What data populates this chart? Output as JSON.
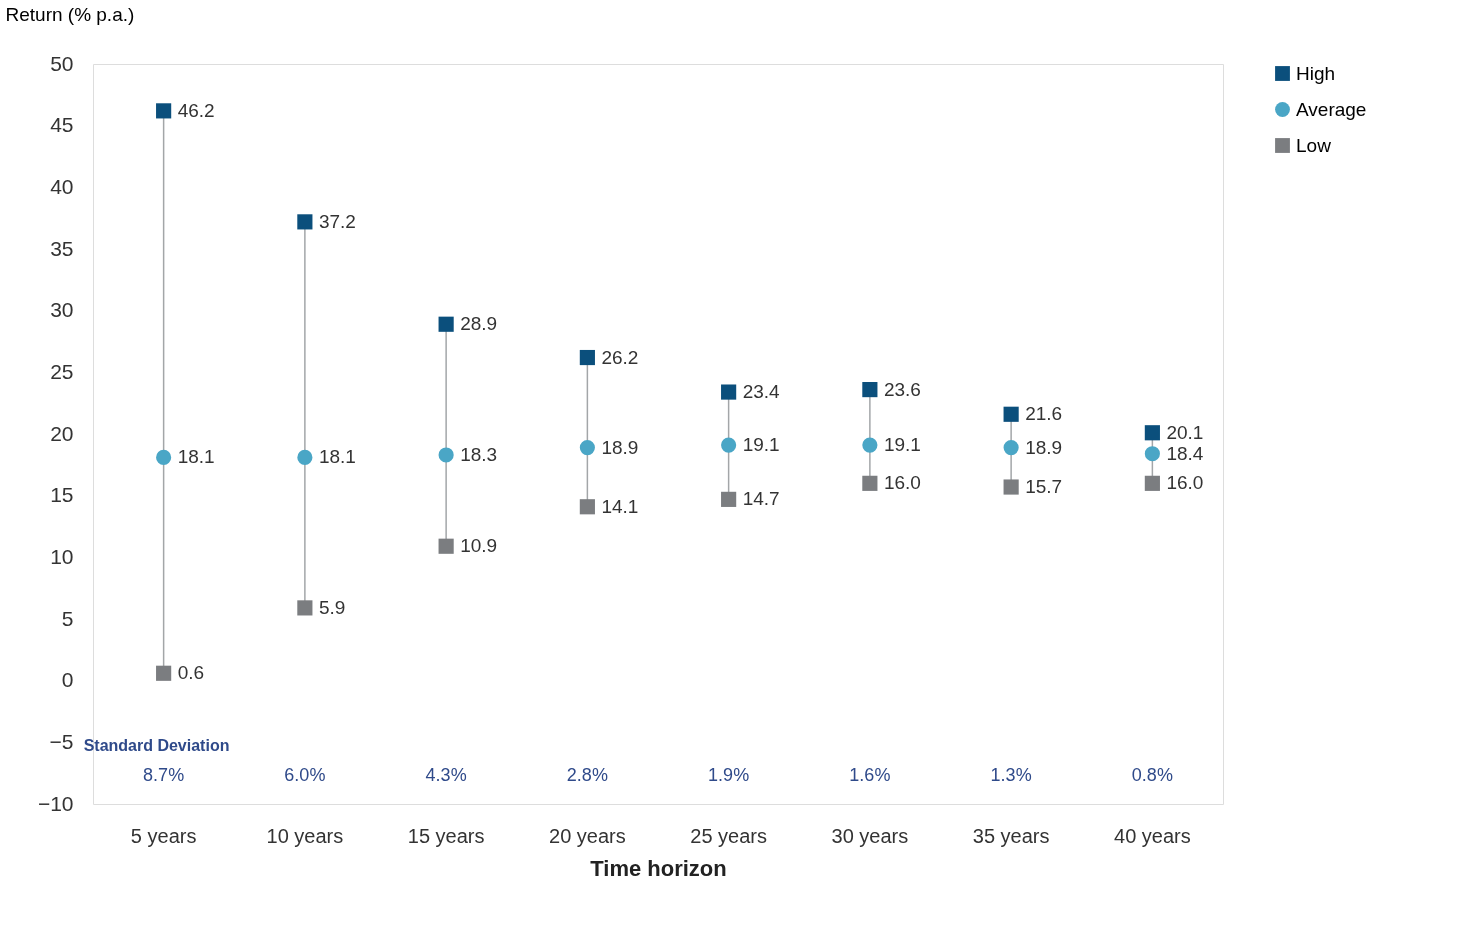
{
  "chart_data": {
    "type": "scatter",
    "xlabel": "Time horizon",
    "ylabel": "Return (% p.a.)",
    "categories": [
      "5 years",
      "10 years",
      "15 years",
      "20 years",
      "25 years",
      "30 years",
      "35 years",
      "40 years"
    ],
    "series": [
      {
        "name": "High",
        "color": "#0b4f7c",
        "marker": "square",
        "values": [
          46.2,
          37.2,
          28.9,
          26.2,
          23.4,
          23.6,
          21.6,
          20.1
        ],
        "value_labels": [
          "46.2",
          "37.2",
          "28.9",
          "26.2",
          "23.4",
          "23.6",
          "21.6",
          "20.1"
        ]
      },
      {
        "name": "Average",
        "color": "#4aa6c6",
        "marker": "circle",
        "values": [
          18.1,
          18.1,
          18.3,
          18.9,
          19.1,
          19.1,
          18.9,
          18.4
        ],
        "value_labels": [
          "18.1",
          "18.1",
          "18.3",
          "18.9",
          "19.1",
          "19.1",
          "18.9",
          "18.4"
        ]
      },
      {
        "name": "Low",
        "color": "#7b7d80",
        "marker": "square",
        "values": [
          0.6,
          5.9,
          10.9,
          14.1,
          14.7,
          16.0,
          15.7,
          16.0
        ],
        "value_labels": [
          "0.6",
          "5.9",
          "10.9",
          "14.1",
          "14.7",
          "16.0",
          "15.7",
          "16.0"
        ]
      }
    ],
    "ylim": [
      -10,
      50
    ],
    "yticks": [
      -10,
      -5,
      0,
      5,
      10,
      15,
      20,
      25,
      30,
      35,
      40,
      45,
      50
    ],
    "legend": "right",
    "annotations": [
      "Standard Deviation",
      "8.7%",
      "6.0%",
      "4.3%",
      "2.8%",
      "1.9%",
      "1.6%",
      "1.3%",
      "0.8%"
    ]
  }
}
